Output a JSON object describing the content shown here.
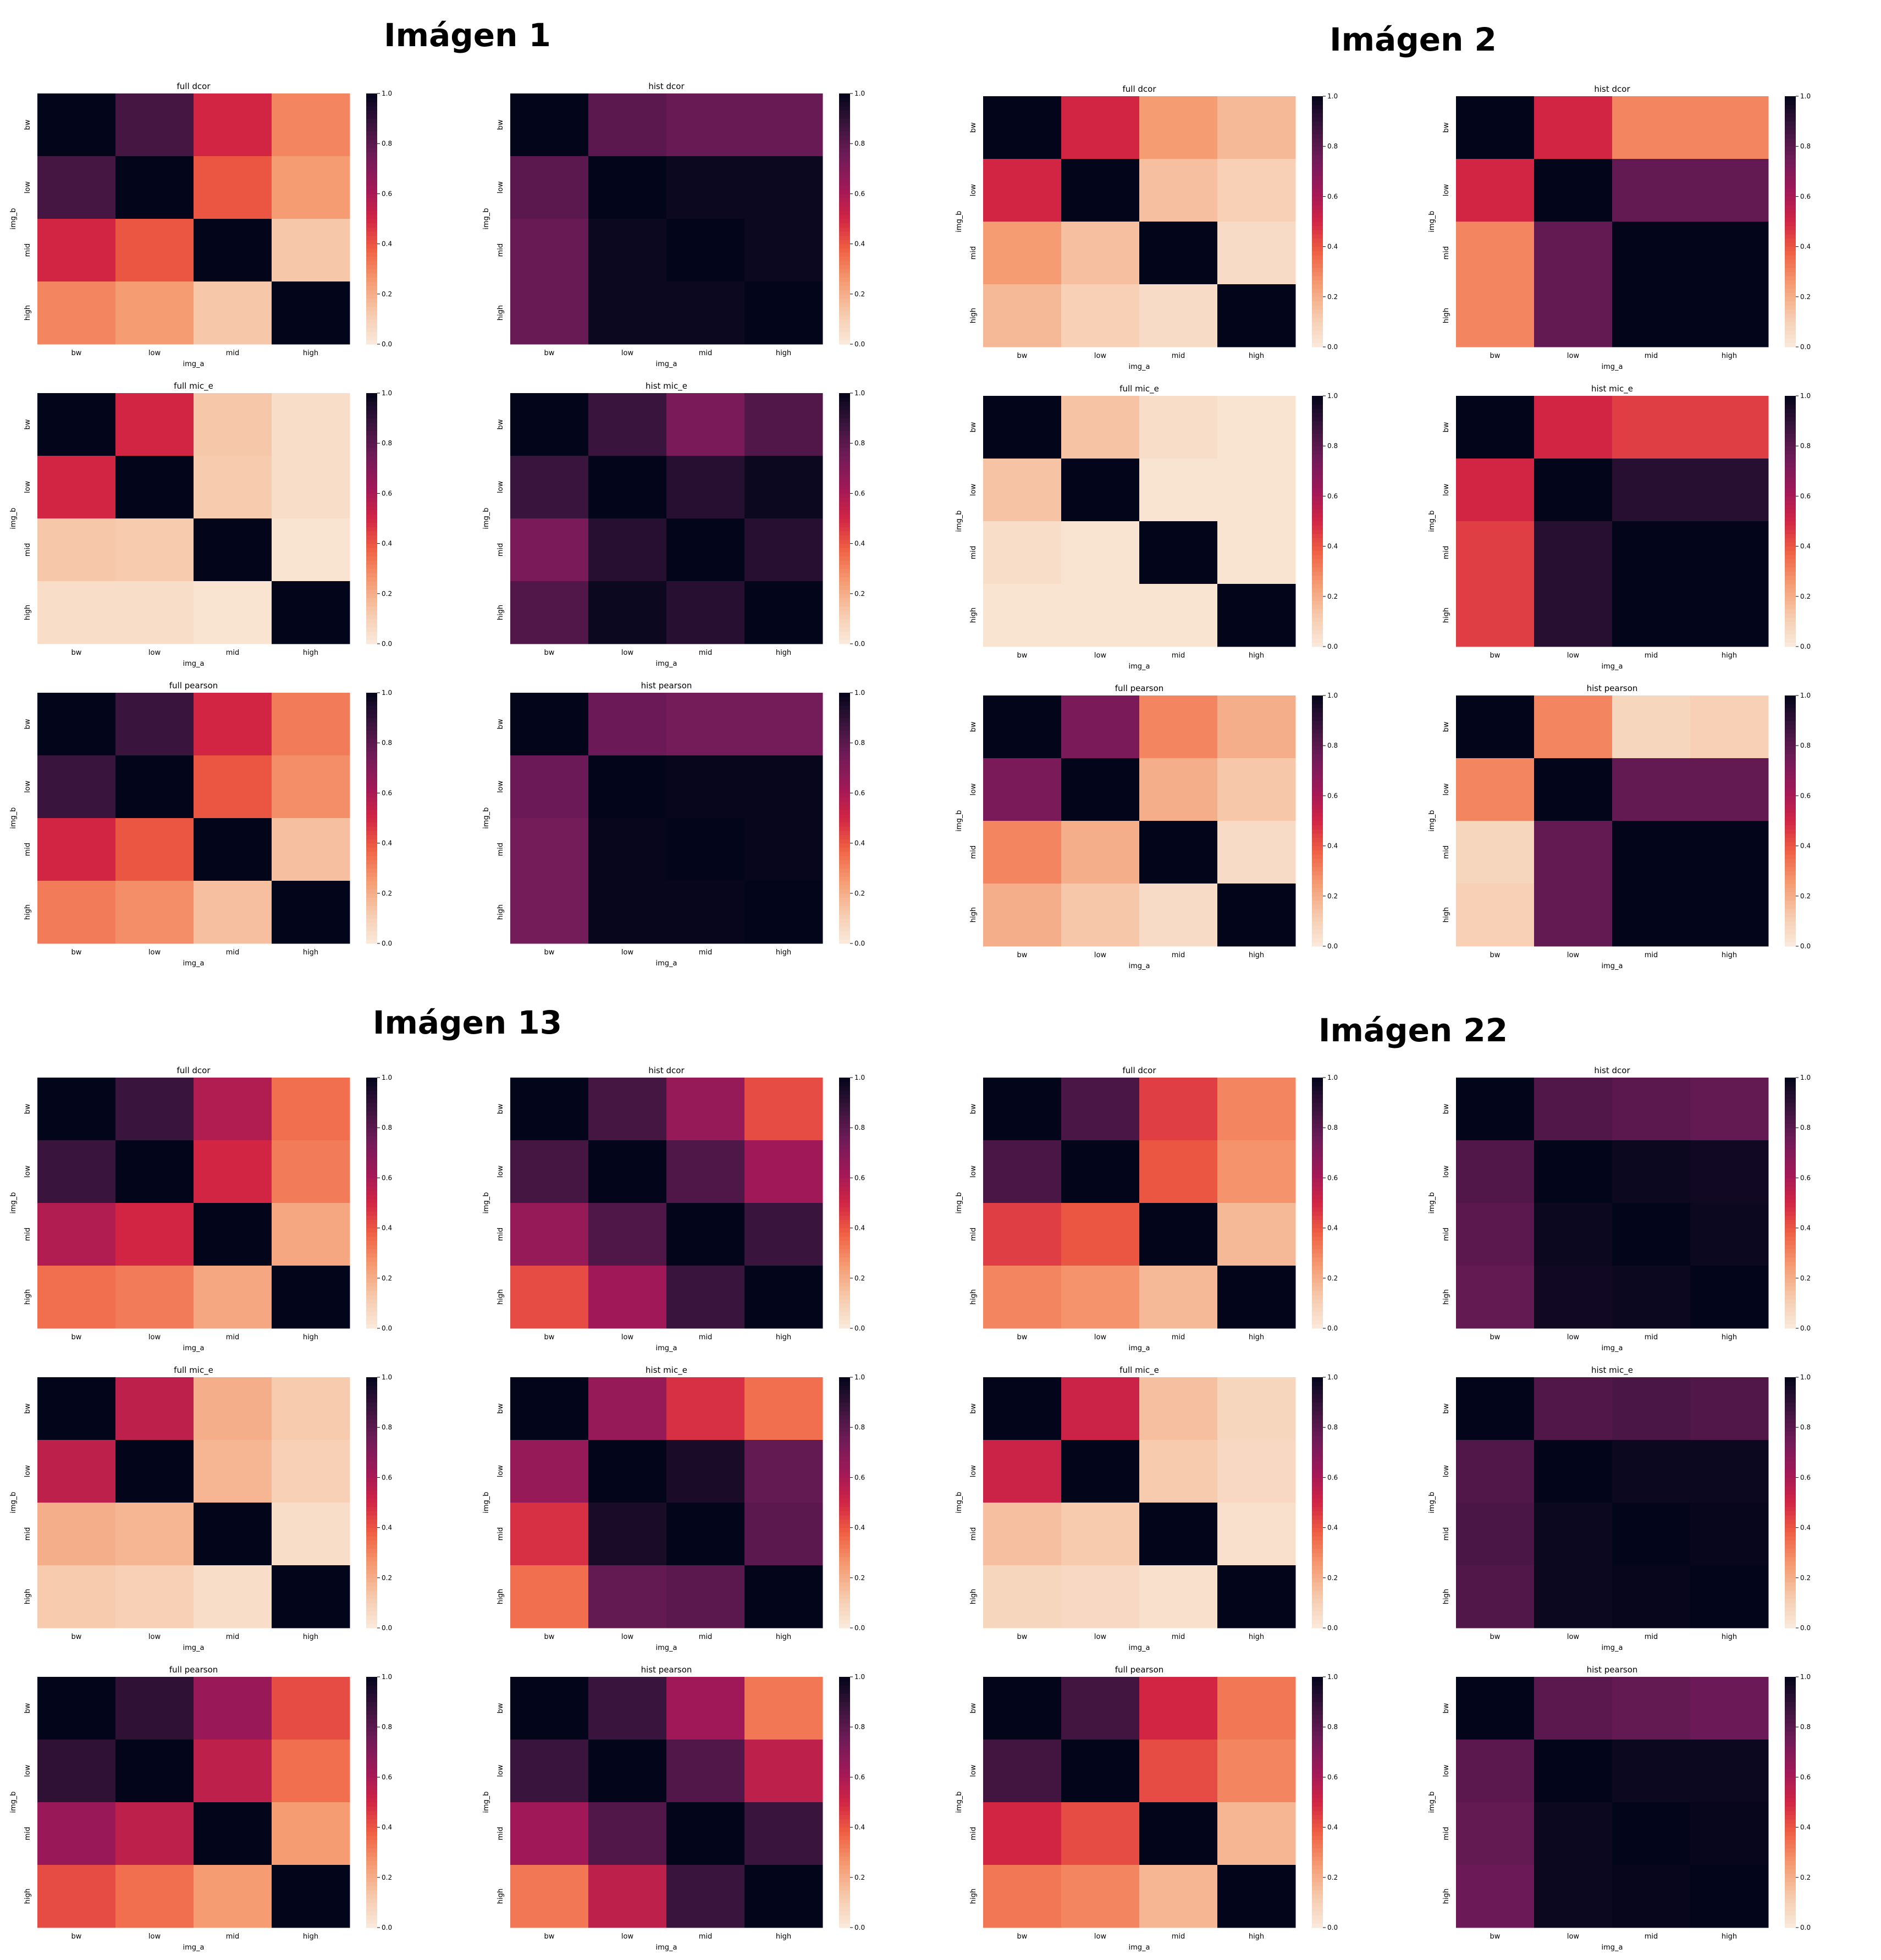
{
  "rows": [
    "bw",
    "low",
    "mid",
    "high"
  ],
  "cols": [
    "bw",
    "low",
    "mid",
    "high"
  ],
  "xlabel": "img_a",
  "ylabel": "img_b",
  "colorbar_ticks": [
    "0.0",
    "0.2",
    "0.4",
    "0.6",
    "0.8",
    "1.0"
  ],
  "colormap": "rocket_r",
  "chart_data": [
    {
      "group": "Imágen 1",
      "panels": [
        {
          "type": "heatmap",
          "title": "full dcor",
          "vmin": 0,
          "vmax": 1,
          "values": [
            [
              1.0,
              0.85,
              0.5,
              0.3
            ],
            [
              0.85,
              1.0,
              0.4,
              0.25
            ],
            [
              0.5,
              0.4,
              1.0,
              0.13
            ],
            [
              0.3,
              0.25,
              0.13,
              1.0
            ]
          ]
        },
        {
          "type": "heatmap",
          "title": "hist dcor",
          "vmin": 0,
          "vmax": 1,
          "values": [
            [
              1.0,
              0.8,
              0.77,
              0.77
            ],
            [
              0.8,
              1.0,
              0.98,
              0.98
            ],
            [
              0.77,
              0.98,
              1.0,
              0.98
            ],
            [
              0.77,
              0.98,
              0.98,
              1.0
            ]
          ]
        },
        {
          "type": "heatmap",
          "title": "full mic_e",
          "vmin": 0,
          "vmax": 1,
          "values": [
            [
              1.0,
              0.5,
              0.13,
              0.05
            ],
            [
              0.5,
              1.0,
              0.12,
              0.05
            ],
            [
              0.13,
              0.12,
              1.0,
              0.03
            ],
            [
              0.05,
              0.05,
              0.03,
              1.0
            ]
          ]
        },
        {
          "type": "heatmap",
          "title": "hist mic_e",
          "vmin": 0,
          "vmax": 1,
          "values": [
            [
              1.0,
              0.88,
              0.72,
              0.82
            ],
            [
              0.88,
              1.0,
              0.92,
              0.98
            ],
            [
              0.72,
              0.92,
              1.0,
              0.92
            ],
            [
              0.82,
              0.98,
              0.92,
              1.0
            ]
          ]
        },
        {
          "type": "heatmap",
          "title": "full pearson",
          "vmin": 0,
          "vmax": 1,
          "values": [
            [
              1.0,
              0.88,
              0.5,
              0.32
            ],
            [
              0.88,
              1.0,
              0.4,
              0.28
            ],
            [
              0.5,
              0.4,
              1.0,
              0.15
            ],
            [
              0.32,
              0.28,
              0.15,
              1.0
            ]
          ]
        },
        {
          "type": "heatmap",
          "title": "hist pearson",
          "vmin": 0,
          "vmax": 1,
          "values": [
            [
              1.0,
              0.76,
              0.74,
              0.74
            ],
            [
              0.76,
              1.0,
              0.99,
              0.99
            ],
            [
              0.74,
              0.99,
              1.0,
              0.99
            ],
            [
              0.74,
              0.99,
              0.99,
              1.0
            ]
          ]
        }
      ]
    },
    {
      "group": "Imágen 2",
      "panels": [
        {
          "type": "heatmap",
          "title": "full dcor",
          "vmin": 0,
          "vmax": 1,
          "values": [
            [
              1.0,
              0.5,
              0.25,
              0.17
            ],
            [
              0.5,
              1.0,
              0.15,
              0.1
            ],
            [
              0.25,
              0.15,
              1.0,
              0.06
            ],
            [
              0.17,
              0.1,
              0.06,
              1.0
            ]
          ]
        },
        {
          "type": "heatmap",
          "title": "hist dcor",
          "vmin": 0,
          "vmax": 1,
          "values": [
            [
              1.0,
              0.5,
              0.3,
              0.3
            ],
            [
              0.5,
              1.0,
              0.78,
              0.78
            ],
            [
              0.3,
              0.78,
              1.0,
              1.0
            ],
            [
              0.3,
              0.78,
              1.0,
              1.0
            ]
          ]
        },
        {
          "type": "heatmap",
          "title": "full mic_e",
          "vmin": 0,
          "vmax": 1,
          "values": [
            [
              1.0,
              0.14,
              0.05,
              0.03
            ],
            [
              0.14,
              1.0,
              0.03,
              0.03
            ],
            [
              0.05,
              0.03,
              1.0,
              0.03
            ],
            [
              0.03,
              0.03,
              0.03,
              1.0
            ]
          ]
        },
        {
          "type": "heatmap",
          "title": "hist mic_e",
          "vmin": 0,
          "vmax": 1,
          "values": [
            [
              1.0,
              0.5,
              0.45,
              0.45
            ],
            [
              0.5,
              1.0,
              0.92,
              0.92
            ],
            [
              0.45,
              0.92,
              1.0,
              1.0
            ],
            [
              0.45,
              0.92,
              1.0,
              1.0
            ]
          ]
        },
        {
          "type": "heatmap",
          "title": "full pearson",
          "vmin": 0,
          "vmax": 1,
          "values": [
            [
              1.0,
              0.72,
              0.3,
              0.2
            ],
            [
              0.72,
              1.0,
              0.2,
              0.13
            ],
            [
              0.3,
              0.2,
              1.0,
              0.06
            ],
            [
              0.2,
              0.13,
              0.06,
              1.0
            ]
          ]
        },
        {
          "type": "heatmap",
          "title": "hist pearson",
          "vmin": 0,
          "vmax": 1,
          "values": [
            [
              1.0,
              0.3,
              0.08,
              0.1
            ],
            [
              0.3,
              1.0,
              0.78,
              0.78
            ],
            [
              0.08,
              0.78,
              1.0,
              1.0
            ],
            [
              0.1,
              0.78,
              1.0,
              1.0
            ]
          ]
        }
      ]
    },
    {
      "group": "Imágen 13",
      "panels": [
        {
          "type": "heatmap",
          "title": "full dcor",
          "vmin": 0,
          "vmax": 1,
          "values": [
            [
              1.0,
              0.88,
              0.58,
              0.35
            ],
            [
              0.88,
              1.0,
              0.5,
              0.32
            ],
            [
              0.58,
              0.5,
              1.0,
              0.22
            ],
            [
              0.35,
              0.32,
              0.22,
              1.0
            ]
          ]
        },
        {
          "type": "heatmap",
          "title": "hist dcor",
          "vmin": 0,
          "vmax": 1,
          "values": [
            [
              1.0,
              0.85,
              0.65,
              0.42
            ],
            [
              0.85,
              1.0,
              0.83,
              0.62
            ],
            [
              0.65,
              0.83,
              1.0,
              0.88
            ],
            [
              0.42,
              0.62,
              0.88,
              1.0
            ]
          ]
        },
        {
          "type": "heatmap",
          "title": "full mic_e",
          "vmin": 0,
          "vmax": 1,
          "values": [
            [
              1.0,
              0.55,
              0.2,
              0.12
            ],
            [
              0.55,
              1.0,
              0.18,
              0.1
            ],
            [
              0.2,
              0.18,
              1.0,
              0.05
            ],
            [
              0.12,
              0.1,
              0.05,
              1.0
            ]
          ]
        },
        {
          "type": "heatmap",
          "title": "hist mic_e",
          "vmin": 0,
          "vmax": 1,
          "values": [
            [
              1.0,
              0.65,
              0.48,
              0.35
            ],
            [
              0.65,
              1.0,
              0.95,
              0.78
            ],
            [
              0.48,
              0.95,
              1.0,
              0.8
            ],
            [
              0.35,
              0.78,
              0.8,
              1.0
            ]
          ]
        },
        {
          "type": "heatmap",
          "title": "full pearson",
          "vmin": 0,
          "vmax": 1,
          "values": [
            [
              1.0,
              0.9,
              0.64,
              0.42
            ],
            [
              0.9,
              1.0,
              0.55,
              0.35
            ],
            [
              0.64,
              0.55,
              1.0,
              0.25
            ],
            [
              0.42,
              0.35,
              0.25,
              1.0
            ]
          ]
        },
        {
          "type": "heatmap",
          "title": "hist pearson",
          "vmin": 0,
          "vmax": 1,
          "values": [
            [
              1.0,
              0.88,
              0.62,
              0.33
            ],
            [
              0.88,
              1.0,
              0.82,
              0.55
            ],
            [
              0.62,
              0.82,
              1.0,
              0.88
            ],
            [
              0.33,
              0.55,
              0.88,
              1.0
            ]
          ]
        }
      ]
    },
    {
      "group": "Imágen 22",
      "panels": [
        {
          "type": "heatmap",
          "title": "full dcor",
          "vmin": 0,
          "vmax": 1,
          "values": [
            [
              1.0,
              0.84,
              0.45,
              0.3
            ],
            [
              0.84,
              1.0,
              0.4,
              0.27
            ],
            [
              0.45,
              0.4,
              1.0,
              0.17
            ],
            [
              0.3,
              0.27,
              0.17,
              1.0
            ]
          ]
        },
        {
          "type": "heatmap",
          "title": "hist dcor",
          "vmin": 0,
          "vmax": 1,
          "values": [
            [
              1.0,
              0.82,
              0.8,
              0.78
            ],
            [
              0.82,
              1.0,
              0.98,
              0.97
            ],
            [
              0.8,
              0.98,
              1.0,
              0.98
            ],
            [
              0.78,
              0.97,
              0.98,
              1.0
            ]
          ]
        },
        {
          "type": "heatmap",
          "title": "full mic_e",
          "vmin": 0,
          "vmax": 1,
          "values": [
            [
              1.0,
              0.52,
              0.15,
              0.08
            ],
            [
              0.52,
              1.0,
              0.12,
              0.07
            ],
            [
              0.15,
              0.12,
              1.0,
              0.04
            ],
            [
              0.08,
              0.07,
              0.04,
              1.0
            ]
          ]
        },
        {
          "type": "heatmap",
          "title": "hist mic_e",
          "vmin": 0,
          "vmax": 1,
          "values": [
            [
              1.0,
              0.82,
              0.84,
              0.82
            ],
            [
              0.82,
              1.0,
              0.98,
              0.98
            ],
            [
              0.84,
              0.98,
              1.0,
              0.99
            ],
            [
              0.82,
              0.98,
              0.99,
              1.0
            ]
          ]
        },
        {
          "type": "heatmap",
          "title": "full pearson",
          "vmin": 0,
          "vmax": 1,
          "values": [
            [
              1.0,
              0.86,
              0.5,
              0.33
            ],
            [
              0.86,
              1.0,
              0.42,
              0.3
            ],
            [
              0.5,
              0.42,
              1.0,
              0.18
            ],
            [
              0.33,
              0.3,
              0.18,
              1.0
            ]
          ]
        },
        {
          "type": "heatmap",
          "title": "hist pearson",
          "vmin": 0,
          "vmax": 1,
          "values": [
            [
              1.0,
              0.8,
              0.78,
              0.76
            ],
            [
              0.8,
              1.0,
              0.98,
              0.98
            ],
            [
              0.78,
              0.98,
              1.0,
              0.99
            ],
            [
              0.76,
              0.98,
              0.99,
              1.0
            ]
          ]
        }
      ]
    }
  ]
}
